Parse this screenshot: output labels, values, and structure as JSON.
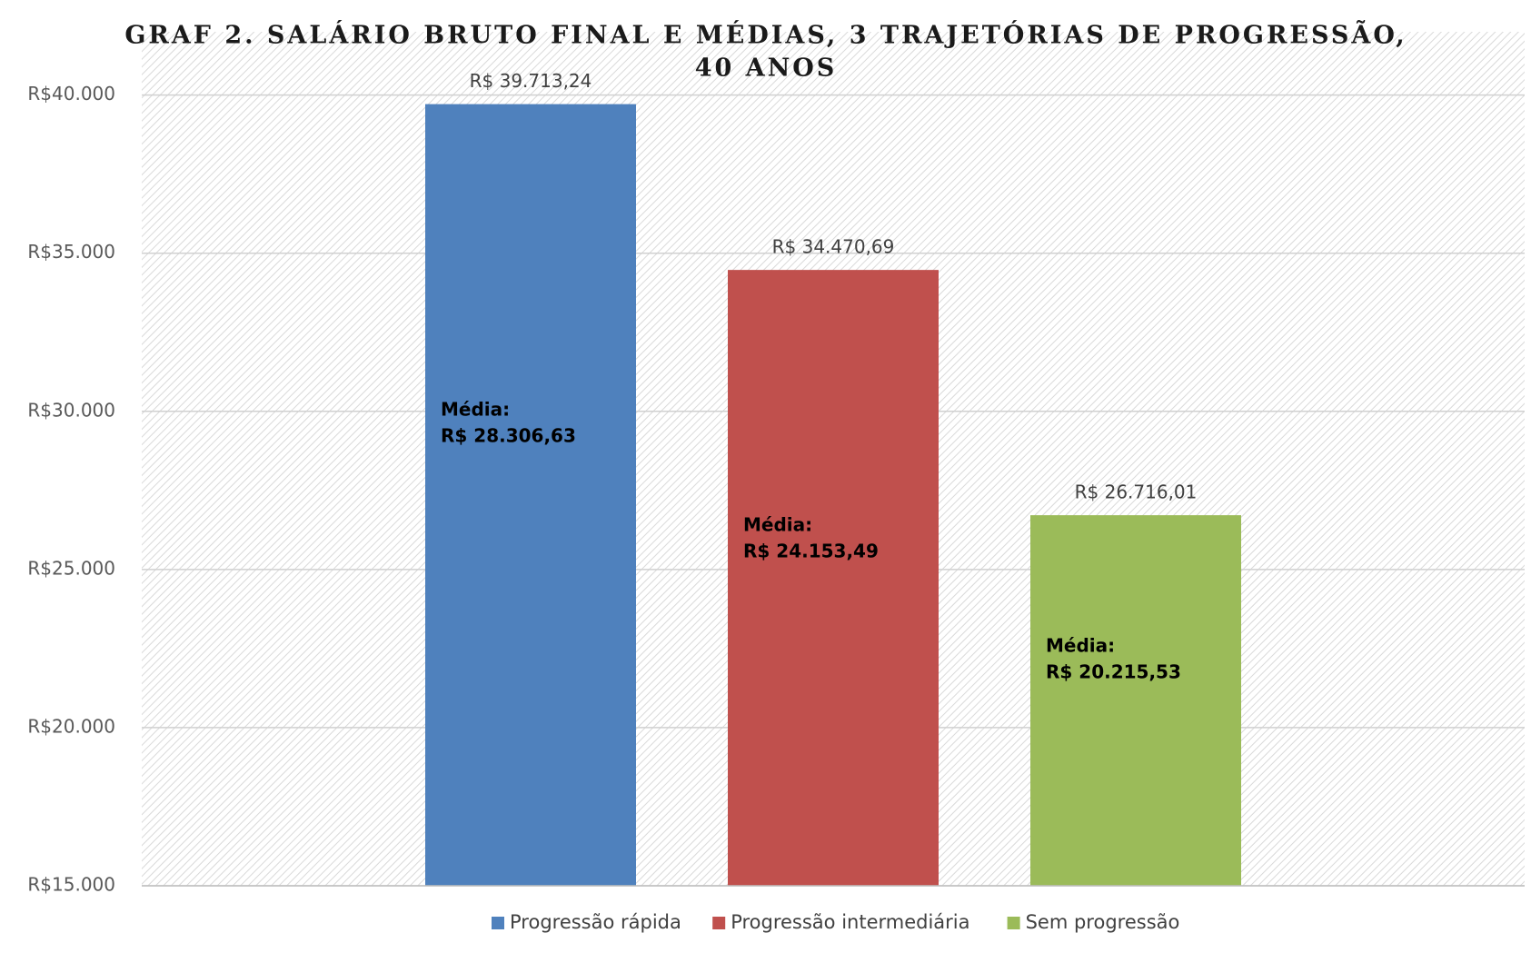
{
  "chart_data": {
    "type": "bar",
    "title_lines": [
      "GRAF 2. SALÁRIO BRUTO FINAL E MÉDIAS, 3 TRAJETÓRIAS DE PROGRESSÃO,",
      "40 ANOS"
    ],
    "categories": [
      null
    ],
    "series": [
      {
        "name": "Progressão rápida",
        "color": "#4f81bd",
        "values": [
          39713.24
        ],
        "value_labels": [
          "R$ 39.713,24"
        ],
        "annotation": [
          "Média:",
          "R$ 28.306,63"
        ]
      },
      {
        "name": "Progressão intermediária",
        "color": "#c0504d",
        "values": [
          34470.69
        ],
        "value_labels": [
          "R$ 34.470,69"
        ],
        "annotation": [
          "Média:",
          "R$ 24.153,49"
        ]
      },
      {
        "name": "Sem progressão",
        "color": "#9bbb59",
        "values": [
          26716.01
        ],
        "value_labels": [
          "R$ 26.716,01"
        ],
        "annotation": [
          "Média:",
          "R$ 20.215,53"
        ]
      }
    ],
    "ylim": [
      15000,
      42000
    ],
    "yticks": [
      {
        "value": 15000,
        "label": "R$15.000"
      },
      {
        "value": 20000,
        "label": "R$20.000"
      },
      {
        "value": 25000,
        "label": "R$25.000"
      },
      {
        "value": 30000,
        "label": "R$30.000"
      },
      {
        "value": 35000,
        "label": "R$35.000"
      },
      {
        "value": 40000,
        "label": "R$40.000"
      }
    ],
    "grid": true,
    "legend": "bottom"
  }
}
